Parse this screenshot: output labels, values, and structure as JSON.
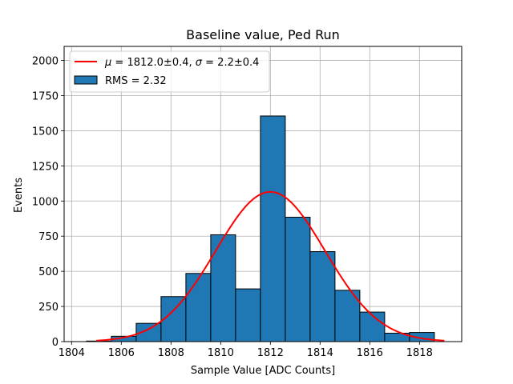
{
  "chart_data": {
    "type": "bar",
    "title": "Baseline value, Ped Run",
    "xlabel": "Sample Value [ADC Counts]",
    "ylabel": "Events",
    "xlim": [
      1803.7,
      1819.7
    ],
    "ylim": [
      0,
      2100
    ],
    "grid": true,
    "legend_position": "top-left",
    "xticks": [
      1804,
      1806,
      1808,
      1810,
      1812,
      1814,
      1816,
      1818
    ],
    "xtick_labels": [
      "1804",
      "1806",
      "1808",
      "1810",
      "1812",
      "1814",
      "1816",
      "1818"
    ],
    "yticks": [
      0,
      250,
      500,
      750,
      1000,
      1250,
      1500,
      1750,
      2000
    ],
    "ytick_labels": [
      "0",
      "250",
      "500",
      "750",
      "1000",
      "1250",
      "1500",
      "1750",
      "2000"
    ],
    "histogram": {
      "name": "RMS = 2.32",
      "color": "#1f77b4",
      "edgecolor": "#000000",
      "bins": [
        {
          "start": 1804.6,
          "end": 1805.6,
          "count": 4
        },
        {
          "start": 1805.6,
          "end": 1806.6,
          "count": 38
        },
        {
          "start": 1806.6,
          "end": 1807.6,
          "count": 130
        },
        {
          "start": 1807.6,
          "end": 1808.6,
          "count": 320
        },
        {
          "start": 1808.6,
          "end": 1809.6,
          "count": 485
        },
        {
          "start": 1809.6,
          "end": 1810.6,
          "count": 760
        },
        {
          "start": 1810.6,
          "end": 1811.6,
          "count": 375
        },
        {
          "start": 1811.6,
          "end": 1812.6,
          "count": 1605
        },
        {
          "start": 1812.6,
          "end": 1813.6,
          "count": 885
        },
        {
          "start": 1813.6,
          "end": 1814.6,
          "count": 640
        },
        {
          "start": 1814.6,
          "end": 1815.6,
          "count": 365
        },
        {
          "start": 1815.6,
          "end": 1816.6,
          "count": 210
        },
        {
          "start": 1816.6,
          "end": 1817.6,
          "count": 60
        },
        {
          "start": 1817.6,
          "end": 1818.6,
          "count": 65
        }
      ]
    },
    "fit": {
      "name": "$\\mu = 1812.0\\pm0.4$, $\\sigma = 2.2\\pm0.4$",
      "label_parts": [
        "μ",
        " = 1812.0±0.4, ",
        "σ",
        " = 2.2±0.4"
      ],
      "color": "#ff0000",
      "type": "gaussian",
      "mu": 1812.0,
      "sigma": 2.2,
      "amplitude": 1065,
      "x_range": [
        1805.0,
        1819.0
      ]
    },
    "legend": [
      {
        "label": "μ = 1812.0±0.4, σ = 2.2±0.4",
        "kind": "line",
        "color": "#ff0000"
      },
      {
        "label": "RMS = 2.32",
        "kind": "patch",
        "color": "#1f77b4"
      }
    ]
  }
}
